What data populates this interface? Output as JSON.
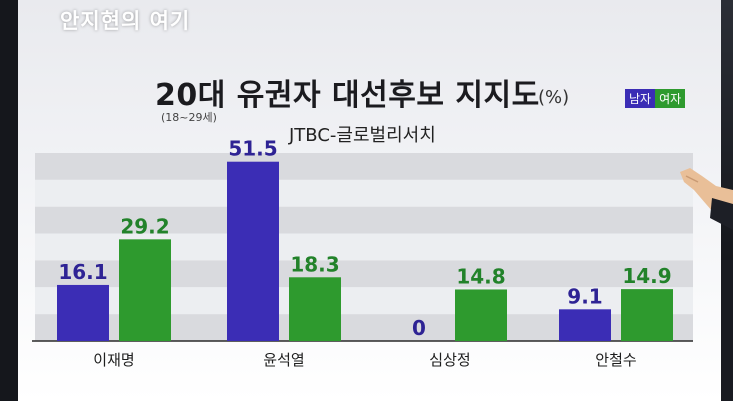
{
  "watermark": "안지현의 여기",
  "chart_data": {
    "type": "bar",
    "title": "20대 유권자 대선후보 지지도",
    "unit": "(%)",
    "subtitle": "(18~29세)",
    "source": "JTBC-글로벌리서치",
    "categories": [
      "이재명",
      "윤석열",
      "심상정",
      "안철수"
    ],
    "series": [
      {
        "name": "남자",
        "color": "#3b2db5",
        "values": [
          16.1,
          51.5,
          0,
          9.1
        ]
      },
      {
        "name": "여자",
        "color": "#2e9a2e",
        "values": [
          29.2,
          18.3,
          14.8,
          14.9
        ]
      }
    ],
    "ylim": [
      0,
      54
    ],
    "grid": true,
    "legend_position": "top-right"
  }
}
